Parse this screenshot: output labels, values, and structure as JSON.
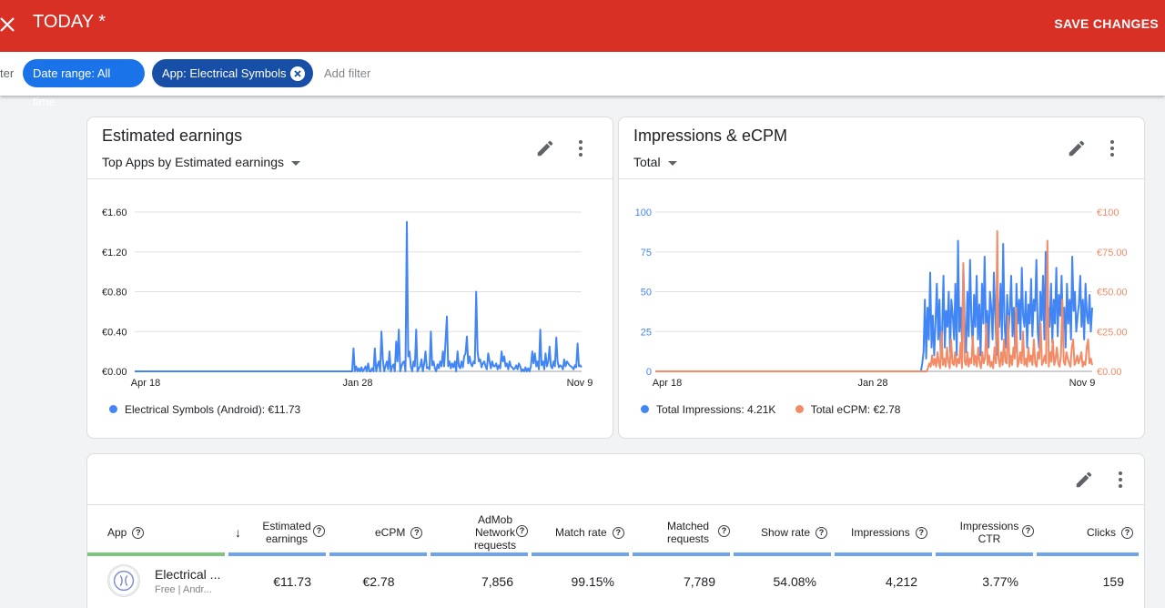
{
  "header": {
    "title": "TODAY *",
    "save_label": "SAVE CHANGES"
  },
  "filters": {
    "truncated_label": "ter",
    "chips": [
      {
        "label": "Date range: All time"
      },
      {
        "label": "App: Electrical Symbols"
      }
    ],
    "add_label": "Add filter"
  },
  "earnings_card": {
    "title": "Estimated earnings",
    "selector": "Top Apps by Estimated earnings",
    "legend": "Electrical Symbols (Android): €11.73"
  },
  "impressions_card": {
    "title": "Impressions & eCPM",
    "selector": "Total",
    "legend_impressions": "Total Impressions: 4.21K",
    "legend_ecpm": "Total eCPM: €2.78"
  },
  "colors": {
    "header": "#d93025",
    "blue_series": "#4285f4",
    "orange_series": "#f28b66",
    "chip_primary": "#1a73e8",
    "chip_dark": "#174ea6",
    "app_column_bar": "#7bc67a",
    "metric_column_bar": "#6fa3ec"
  },
  "chart_data": [
    {
      "type": "line",
      "title": "Estimated earnings",
      "x_ticks": [
        "Apr 18",
        "Jan 28",
        "Nov 9"
      ],
      "y_ticks": [
        "€0.00",
        "€0.40",
        "€0.80",
        "€1.20",
        "€1.60"
      ],
      "ylim": [
        0,
        1.6
      ],
      "grid": true,
      "legend_position": "bottom-left",
      "series": [
        {
          "name": "Electrical Symbols (Android): €11.73",
          "color": "#4285f4",
          "values": [
            0,
            0,
            0,
            0,
            0,
            0,
            0,
            0,
            0,
            0,
            0,
            0,
            0,
            0,
            0,
            0,
            0,
            0,
            0,
            0,
            0,
            0,
            0,
            0,
            0,
            0,
            0,
            0,
            0,
            0,
            0,
            0,
            0,
            0,
            0,
            0,
            0,
            0,
            0,
            0,
            0,
            0,
            0,
            0,
            0,
            0,
            0,
            0,
            0,
            0,
            0,
            0,
            0,
            0,
            0,
            0,
            0,
            0,
            0,
            0,
            0,
            0,
            0,
            0,
            0,
            0,
            0,
            0,
            0,
            0,
            0,
            0,
            0,
            0,
            0,
            0,
            0,
            0,
            0,
            0,
            0,
            0,
            0,
            0,
            0,
            0,
            0,
            0,
            0,
            0,
            0,
            0,
            0,
            0,
            0,
            0,
            0,
            0,
            0,
            0,
            0,
            0,
            0,
            0,
            0,
            0,
            0,
            0,
            0,
            0,
            0,
            0,
            0,
            0,
            0,
            0,
            0,
            0,
            0,
            0,
            0,
            0,
            0,
            0,
            0,
            0,
            0,
            0,
            0,
            0,
            0,
            0,
            0,
            0,
            0,
            0,
            0,
            0,
            0,
            0,
            0,
            0,
            0,
            0,
            0,
            0,
            0,
            0,
            0,
            0,
            0,
            0,
            0,
            0,
            0,
            0,
            0,
            0,
            0,
            0,
            0,
            0,
            0,
            0,
            0.23,
            0,
            0.05,
            0,
            0.03,
            0,
            0.04,
            0,
            0.02,
            0.05,
            0,
            0.08,
            0,
            0,
            0.03,
            0,
            0.23,
            0,
            0.06,
            0.1,
            0,
            0.4,
            0.12,
            0,
            0.05,
            0.1,
            0.02,
            0.2,
            0,
            0.05,
            0.07,
            0,
            0.3,
            0.1,
            0.42,
            0,
            0.05,
            0.09,
            0.1,
            0,
            1.5,
            0.15,
            0.2,
            0.05,
            0,
            0.1,
            0.05,
            0.42,
            0,
            0.03,
            0.05,
            0.12,
            0,
            0.08,
            0.2,
            0.03,
            0.04,
            0.02,
            0.4,
            0.06,
            0.1,
            0.03,
            0,
            0.07,
            0.03,
            0.1,
            0.05,
            0.2,
            0.05,
            0.3,
            0.55,
            0.05,
            0.1,
            0.03,
            0.08,
            0.04,
            0.1,
            0,
            0.2,
            0.05,
            0.03,
            0.1,
            0.04,
            0.15,
            0.18,
            0.35,
            0.08,
            0.15,
            0.08,
            0.05,
            0.1,
            0.08,
            0.8,
            0.2,
            0.1,
            0.12,
            0.04,
            0.08,
            0.1,
            0.05,
            0.02,
            0.18,
            0.1,
            0.03,
            0.1,
            0.05,
            0.05,
            0.08,
            0.02,
            0.06,
            0.03,
            0.2,
            0.1,
            0.15,
            0.05,
            0.08,
            0.02,
            0.1,
            0.05,
            0.04,
            0.02,
            0.03,
            0.06,
            0.02,
            0.08,
            0.05,
            0,
            0.02,
            0,
            0.04,
            0,
            0.03,
            0,
            0.05,
            0.2,
            0.08,
            0.18,
            0.05,
            0.1,
            0.02,
            0.42,
            0.06,
            0.1,
            0.02,
            0.18,
            0.05,
            0.1,
            0.25,
            0.05,
            0.03,
            0.1,
            0.05,
            0.34,
            0.1,
            0.04,
            0.06,
            0.05,
            0.02,
            0.12,
            0.05,
            0.1,
            0.08,
            0.06,
            0.05,
            0.04,
            0.02,
            0.06,
            0.04,
            0.28,
            0.05,
            0.06,
            0.04
          ]
        }
      ]
    },
    {
      "type": "line",
      "title": "Impressions & eCPM",
      "x_ticks": [
        "Apr 18",
        "Jan 28",
        "Nov 9"
      ],
      "y_ticks_left": [
        "0",
        "25",
        "50",
        "75",
        "100"
      ],
      "y_ticks_right": [
        "€0.00",
        "€25.00",
        "€50.00",
        "€75.00",
        "€100"
      ],
      "ylim_left": [
        0,
        100
      ],
      "ylim_right": [
        0,
        100
      ],
      "grid": true,
      "legend_position": "bottom-left",
      "series": [
        {
          "name": "Total Impressions: 4.21K",
          "color": "#4285f4",
          "axis": "left",
          "values": [
            0,
            0,
            0,
            0,
            0,
            0,
            0,
            0,
            0,
            0,
            0,
            0,
            0,
            0,
            0,
            0,
            0,
            0,
            0,
            0,
            0,
            0,
            0,
            0,
            0,
            0,
            0,
            0,
            0,
            0,
            0,
            0,
            0,
            0,
            0,
            0,
            0,
            0,
            0,
            0,
            0,
            0,
            0,
            0,
            0,
            0,
            0,
            0,
            0,
            0,
            0,
            0,
            0,
            0,
            0,
            0,
            0,
            0,
            0,
            0,
            0,
            0,
            0,
            0,
            0,
            0,
            0,
            0,
            0,
            0,
            0,
            0,
            0,
            0,
            0,
            0,
            0,
            0,
            0,
            0,
            0,
            0,
            0,
            0,
            0,
            0,
            0,
            0,
            0,
            0,
            0,
            0,
            0,
            0,
            0,
            0,
            0,
            0,
            0,
            0,
            0,
            0,
            0,
            0,
            0,
            0,
            0,
            0,
            0,
            0,
            0,
            0,
            0,
            0,
            0,
            0,
            0,
            0,
            0,
            0,
            0,
            0,
            0,
            0,
            0,
            0,
            0,
            0,
            0,
            0,
            0,
            0,
            0,
            0,
            0,
            0,
            0,
            0,
            0,
            0,
            0,
            0,
            0,
            0,
            0,
            0,
            0,
            0,
            0,
            0,
            0,
            0,
            0,
            0,
            0,
            0,
            0,
            0,
            0,
            0,
            0,
            0,
            0,
            0,
            0,
            0,
            0,
            0,
            0,
            0,
            0,
            0,
            0,
            0,
            0,
            0,
            0,
            0,
            0,
            0,
            0,
            0,
            0,
            0,
            0,
            0,
            0,
            0,
            0,
            0,
            0,
            0,
            0,
            0,
            0,
            0,
            0,
            0,
            0,
            0,
            0,
            5,
            12,
            45,
            8,
            40,
            20,
            62,
            15,
            35,
            10,
            30,
            55,
            20,
            45,
            8,
            25,
            60,
            15,
            38,
            28,
            50,
            12,
            45,
            35,
            20,
            55,
            10,
            82,
            25,
            40,
            18,
            65,
            30,
            12,
            50,
            22,
            70,
            35,
            15,
            48,
            28,
            60,
            20,
            42,
            10,
            55,
            30,
            72,
            25,
            38,
            15,
            50,
            40,
            20,
            62,
            35,
            10,
            45,
            28,
            55,
            20,
            80,
            30,
            15,
            48,
            25,
            38,
            60,
            22,
            40,
            12,
            55,
            30,
            45,
            20,
            65,
            35,
            28,
            50,
            15,
            42,
            30,
            58,
            22,
            45,
            38,
            70,
            25,
            15,
            50,
            32,
            60,
            20,
            75,
            35,
            40,
            28,
            55,
            18,
            45,
            30,
            65,
            22,
            48,
            35,
            60,
            25,
            40,
            15,
            55,
            30,
            45,
            20,
            72,
            38,
            50,
            25,
            35,
            42,
            60,
            28,
            45,
            20,
            55,
            35,
            30,
            48,
            25,
            40
          ]
        },
        {
          "name": "Total eCPM: €2.78",
          "color": "#f28b66",
          "axis": "right",
          "values": [
            0,
            0,
            0,
            0,
            0,
            0,
            0,
            0,
            0,
            0,
            0,
            0,
            0,
            0,
            0,
            0,
            0,
            0,
            0,
            0,
            0,
            0,
            0,
            0,
            0,
            0,
            0,
            0,
            0,
            0,
            0,
            0,
            0,
            0,
            0,
            0,
            0,
            0,
            0,
            0,
            0,
            0,
            0,
            0,
            0,
            0,
            0,
            0,
            0,
            0,
            0,
            0,
            0,
            0,
            0,
            0,
            0,
            0,
            0,
            0,
            0,
            0,
            0,
            0,
            0,
            0,
            0,
            0,
            0,
            0,
            0,
            0,
            0,
            0,
            0,
            0,
            0,
            0,
            0,
            0,
            0,
            0,
            0,
            0,
            0,
            0,
            0,
            0,
            0,
            0,
            0,
            0,
            0,
            0,
            0,
            0,
            0,
            0,
            0,
            0,
            0,
            0,
            0,
            0,
            0,
            0,
            0,
            0,
            0,
            0,
            0,
            0,
            0,
            0,
            0,
            0,
            0,
            0,
            0,
            0,
            0,
            0,
            0,
            0,
            0,
            0,
            0,
            0,
            0,
            0,
            0,
            0,
            0,
            0,
            0,
            0,
            0,
            0,
            0,
            0,
            0,
            0,
            0,
            0,
            0,
            0,
            0,
            0,
            0,
            0,
            0,
            0,
            0,
            0,
            0,
            0,
            0,
            0,
            0,
            0,
            0,
            0,
            0,
            0,
            0,
            0,
            0,
            0,
            0,
            0,
            0,
            0,
            0,
            0,
            0,
            0,
            0,
            0,
            0,
            0,
            0,
            0,
            0,
            0,
            0,
            0,
            0,
            0,
            0,
            0,
            0,
            0,
            0,
            0,
            0,
            0,
            0,
            0,
            0,
            0,
            0,
            2,
            5,
            3,
            10,
            4,
            8,
            3,
            12,
            5,
            2,
            25,
            4,
            8,
            3,
            15,
            6,
            2,
            20,
            5,
            4,
            12,
            3,
            8,
            5,
            18,
            2,
            68,
            6,
            4,
            12,
            3,
            8,
            5,
            22,
            4,
            10,
            3,
            15,
            6,
            2,
            12,
            5,
            8,
            30,
            4,
            10,
            3,
            6,
            2,
            15,
            5,
            88,
            8,
            3,
            12,
            4,
            20,
            6,
            5,
            35,
            3,
            10,
            4,
            15,
            8,
            40,
            3,
            6,
            12,
            5,
            25,
            4,
            8,
            3,
            15,
            6,
            10,
            4,
            20,
            5,
            3,
            12,
            8,
            30,
            4,
            6,
            10,
            5,
            82,
            3,
            12,
            6,
            20,
            4,
            8,
            15,
            5,
            3,
            10,
            45,
            6,
            4,
            12,
            8,
            5,
            3,
            15,
            20,
            4,
            6,
            10,
            5,
            8,
            12,
            3,
            6,
            4,
            15,
            20,
            5,
            8,
            4
          ]
        }
      ]
    }
  ],
  "table": {
    "columns": [
      {
        "label": "App"
      },
      {
        "label": "Estimated earnings",
        "sort": "↓"
      },
      {
        "label": "eCPM"
      },
      {
        "label": "AdMob Network requests"
      },
      {
        "label": "Match rate"
      },
      {
        "label": "Matched requests"
      },
      {
        "label": "Show rate"
      },
      {
        "label": "Impressions"
      },
      {
        "label": "Impressions CTR"
      },
      {
        "label": "Clicks"
      }
    ],
    "rows": [
      {
        "app_name": "Electrical ...",
        "app_sub": "Free | Andr...",
        "cells": [
          "€11.73",
          "€2.78",
          "7,856",
          "99.15%",
          "7,789",
          "54.08%",
          "4,212",
          "3.77%",
          "159"
        ]
      }
    ]
  }
}
